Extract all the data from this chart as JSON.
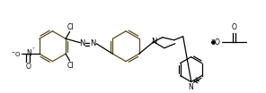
{
  "bg_color": "#ffffff",
  "line_color": "#000000",
  "ring_color": "#5c4a1e",
  "figsize": [
    2.96,
    1.04
  ],
  "dpi": 100,
  "xlim": [
    0,
    296
  ],
  "ylim": [
    0,
    104
  ]
}
